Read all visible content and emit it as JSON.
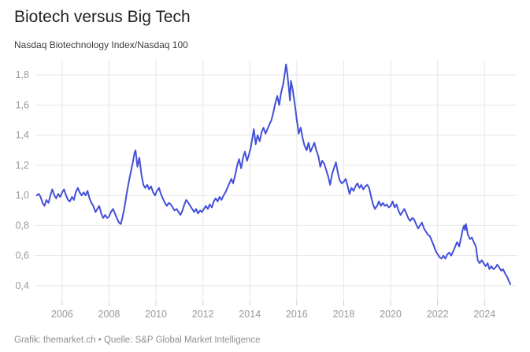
{
  "header": {
    "title": "Biotech versus Big Tech",
    "subtitle": "Nasdaq Biotechnology Index/Nasdaq 100"
  },
  "footer": {
    "credit": "Grafik: themarket.ch • Quelle: S&P Global Market Intelligence"
  },
  "colors": {
    "line": "#4350d8",
    "grid": "#e6e6e6",
    "tick": "#cccccc",
    "axis_label": "#999999",
    "title": "#222222",
    "subtitle": "#3d3d3d",
    "credit": "#8f8f8f",
    "background": "#ffffff"
  },
  "chart_data": {
    "type": "line",
    "title": "Biotech versus Big Tech",
    "subtitle": "Nasdaq Biotechnology Index/Nasdaq 100",
    "xlabel": "",
    "ylabel": "",
    "grid": true,
    "legend": false,
    "decimal_separator": ",",
    "xlim": [
      2004.83,
      2025.4
    ],
    "ylim": [
      0.3,
      1.9
    ],
    "x_ticks": [
      2006,
      2008,
      2010,
      2012,
      2014,
      2016,
      2018,
      2020,
      2022,
      2024
    ],
    "y_ticks": [
      0.4,
      0.6,
      0.8,
      1.0,
      1.2,
      1.4,
      1.6,
      1.8
    ],
    "series": [
      {
        "name": "Nasdaq Biotechnology Index / Nasdaq 100",
        "points": [
          [
            2004.92,
            1.0
          ],
          [
            2005.0,
            1.01
          ],
          [
            2005.08,
            0.99
          ],
          [
            2005.17,
            0.95
          ],
          [
            2005.25,
            0.93
          ],
          [
            2005.33,
            0.97
          ],
          [
            2005.42,
            0.95
          ],
          [
            2005.5,
            1.0
          ],
          [
            2005.58,
            1.04
          ],
          [
            2005.67,
            1.0
          ],
          [
            2005.75,
            0.98
          ],
          [
            2005.83,
            1.01
          ],
          [
            2005.92,
            0.99
          ],
          [
            2006.0,
            1.02
          ],
          [
            2006.08,
            1.04
          ],
          [
            2006.17,
            1.0
          ],
          [
            2006.25,
            0.97
          ],
          [
            2006.33,
            0.96
          ],
          [
            2006.42,
            0.99
          ],
          [
            2006.5,
            0.97
          ],
          [
            2006.58,
            1.02
          ],
          [
            2006.67,
            1.05
          ],
          [
            2006.75,
            1.02
          ],
          [
            2006.83,
            1.0
          ],
          [
            2006.92,
            1.02
          ],
          [
            2007.0,
            1.0
          ],
          [
            2007.08,
            1.03
          ],
          [
            2007.17,
            0.98
          ],
          [
            2007.25,
            0.95
          ],
          [
            2007.33,
            0.93
          ],
          [
            2007.42,
            0.89
          ],
          [
            2007.5,
            0.91
          ],
          [
            2007.58,
            0.93
          ],
          [
            2007.67,
            0.88
          ],
          [
            2007.75,
            0.85
          ],
          [
            2007.83,
            0.87
          ],
          [
            2007.92,
            0.85
          ],
          [
            2008.0,
            0.86
          ],
          [
            2008.08,
            0.89
          ],
          [
            2008.17,
            0.91
          ],
          [
            2008.25,
            0.88
          ],
          [
            2008.33,
            0.85
          ],
          [
            2008.42,
            0.82
          ],
          [
            2008.5,
            0.81
          ],
          [
            2008.58,
            0.86
          ],
          [
            2008.67,
            0.93
          ],
          [
            2008.75,
            1.01
          ],
          [
            2008.83,
            1.08
          ],
          [
            2008.92,
            1.15
          ],
          [
            2009.0,
            1.21
          ],
          [
            2009.08,
            1.28
          ],
          [
            2009.13,
            1.3
          ],
          [
            2009.21,
            1.19
          ],
          [
            2009.29,
            1.25
          ],
          [
            2009.38,
            1.14
          ],
          [
            2009.46,
            1.07
          ],
          [
            2009.54,
            1.05
          ],
          [
            2009.63,
            1.07
          ],
          [
            2009.71,
            1.04
          ],
          [
            2009.79,
            1.06
          ],
          [
            2009.88,
            1.02
          ],
          [
            2009.96,
            1.0
          ],
          [
            2010.04,
            1.03
          ],
          [
            2010.13,
            1.05
          ],
          [
            2010.21,
            1.01
          ],
          [
            2010.29,
            0.98
          ],
          [
            2010.38,
            0.95
          ],
          [
            2010.46,
            0.93
          ],
          [
            2010.54,
            0.95
          ],
          [
            2010.63,
            0.94
          ],
          [
            2010.71,
            0.92
          ],
          [
            2010.79,
            0.9
          ],
          [
            2010.88,
            0.91
          ],
          [
            2010.96,
            0.89
          ],
          [
            2011.04,
            0.87
          ],
          [
            2011.13,
            0.9
          ],
          [
            2011.21,
            0.94
          ],
          [
            2011.29,
            0.97
          ],
          [
            2011.38,
            0.95
          ],
          [
            2011.46,
            0.93
          ],
          [
            2011.54,
            0.91
          ],
          [
            2011.63,
            0.89
          ],
          [
            2011.71,
            0.91
          ],
          [
            2011.79,
            0.88
          ],
          [
            2011.88,
            0.9
          ],
          [
            2011.96,
            0.89
          ],
          [
            2012.04,
            0.91
          ],
          [
            2012.13,
            0.93
          ],
          [
            2012.21,
            0.91
          ],
          [
            2012.29,
            0.94
          ],
          [
            2012.38,
            0.92
          ],
          [
            2012.46,
            0.96
          ],
          [
            2012.54,
            0.98
          ],
          [
            2012.63,
            0.96
          ],
          [
            2012.71,
            0.99
          ],
          [
            2012.79,
            0.97
          ],
          [
            2012.88,
            1.0
          ],
          [
            2012.96,
            1.02
          ],
          [
            2013.04,
            1.05
          ],
          [
            2013.13,
            1.08
          ],
          [
            2013.21,
            1.11
          ],
          [
            2013.29,
            1.08
          ],
          [
            2013.38,
            1.14
          ],
          [
            2013.46,
            1.2
          ],
          [
            2013.54,
            1.24
          ],
          [
            2013.63,
            1.18
          ],
          [
            2013.71,
            1.25
          ],
          [
            2013.79,
            1.29
          ],
          [
            2013.88,
            1.23
          ],
          [
            2013.96,
            1.27
          ],
          [
            2014.04,
            1.32
          ],
          [
            2014.13,
            1.4
          ],
          [
            2014.17,
            1.44
          ],
          [
            2014.25,
            1.34
          ],
          [
            2014.33,
            1.4
          ],
          [
            2014.42,
            1.36
          ],
          [
            2014.5,
            1.42
          ],
          [
            2014.58,
            1.45
          ],
          [
            2014.67,
            1.41
          ],
          [
            2014.75,
            1.44
          ],
          [
            2014.83,
            1.47
          ],
          [
            2014.92,
            1.5
          ],
          [
            2015.0,
            1.55
          ],
          [
            2015.08,
            1.61
          ],
          [
            2015.17,
            1.66
          ],
          [
            2015.25,
            1.6
          ],
          [
            2015.33,
            1.68
          ],
          [
            2015.42,
            1.74
          ],
          [
            2015.5,
            1.82
          ],
          [
            2015.54,
            1.87
          ],
          [
            2015.58,
            1.83
          ],
          [
            2015.63,
            1.76
          ],
          [
            2015.67,
            1.7
          ],
          [
            2015.71,
            1.63
          ],
          [
            2015.75,
            1.76
          ],
          [
            2015.83,
            1.7
          ],
          [
            2015.92,
            1.6
          ],
          [
            2016.0,
            1.5
          ],
          [
            2016.08,
            1.41
          ],
          [
            2016.17,
            1.45
          ],
          [
            2016.25,
            1.38
          ],
          [
            2016.33,
            1.33
          ],
          [
            2016.42,
            1.3
          ],
          [
            2016.5,
            1.35
          ],
          [
            2016.58,
            1.29
          ],
          [
            2016.67,
            1.32
          ],
          [
            2016.75,
            1.35
          ],
          [
            2016.83,
            1.3
          ],
          [
            2016.92,
            1.26
          ],
          [
            2017.0,
            1.19
          ],
          [
            2017.08,
            1.23
          ],
          [
            2017.17,
            1.21
          ],
          [
            2017.25,
            1.17
          ],
          [
            2017.33,
            1.13
          ],
          [
            2017.42,
            1.07
          ],
          [
            2017.5,
            1.14
          ],
          [
            2017.58,
            1.18
          ],
          [
            2017.67,
            1.22
          ],
          [
            2017.75,
            1.15
          ],
          [
            2017.83,
            1.1
          ],
          [
            2017.92,
            1.08
          ],
          [
            2018.0,
            1.09
          ],
          [
            2018.08,
            1.11
          ],
          [
            2018.17,
            1.06
          ],
          [
            2018.25,
            1.01
          ],
          [
            2018.33,
            1.05
          ],
          [
            2018.42,
            1.03
          ],
          [
            2018.5,
            1.06
          ],
          [
            2018.58,
            1.08
          ],
          [
            2018.67,
            1.05
          ],
          [
            2018.75,
            1.07
          ],
          [
            2018.83,
            1.04
          ],
          [
            2018.92,
            1.06
          ],
          [
            2019.0,
            1.07
          ],
          [
            2019.08,
            1.05
          ],
          [
            2019.17,
            0.99
          ],
          [
            2019.25,
            0.94
          ],
          [
            2019.33,
            0.91
          ],
          [
            2019.42,
            0.93
          ],
          [
            2019.5,
            0.96
          ],
          [
            2019.58,
            0.93
          ],
          [
            2019.67,
            0.95
          ],
          [
            2019.75,
            0.93
          ],
          [
            2019.83,
            0.94
          ],
          [
            2019.92,
            0.92
          ],
          [
            2020.0,
            0.93
          ],
          [
            2020.08,
            0.96
          ],
          [
            2020.17,
            0.92
          ],
          [
            2020.25,
            0.94
          ],
          [
            2020.33,
            0.9
          ],
          [
            2020.42,
            0.87
          ],
          [
            2020.5,
            0.89
          ],
          [
            2020.58,
            0.91
          ],
          [
            2020.67,
            0.88
          ],
          [
            2020.75,
            0.85
          ],
          [
            2020.83,
            0.83
          ],
          [
            2020.92,
            0.85
          ],
          [
            2021.0,
            0.84
          ],
          [
            2021.08,
            0.81
          ],
          [
            2021.17,
            0.78
          ],
          [
            2021.25,
            0.8
          ],
          [
            2021.33,
            0.82
          ],
          [
            2021.42,
            0.78
          ],
          [
            2021.5,
            0.76
          ],
          [
            2021.58,
            0.74
          ],
          [
            2021.67,
            0.73
          ],
          [
            2021.75,
            0.7
          ],
          [
            2021.83,
            0.67
          ],
          [
            2021.92,
            0.63
          ],
          [
            2022.0,
            0.61
          ],
          [
            2022.08,
            0.59
          ],
          [
            2022.17,
            0.58
          ],
          [
            2022.25,
            0.6
          ],
          [
            2022.33,
            0.58
          ],
          [
            2022.42,
            0.61
          ],
          [
            2022.5,
            0.62
          ],
          [
            2022.58,
            0.6
          ],
          [
            2022.67,
            0.63
          ],
          [
            2022.75,
            0.66
          ],
          [
            2022.83,
            0.69
          ],
          [
            2022.92,
            0.66
          ],
          [
            2023.0,
            0.72
          ],
          [
            2023.08,
            0.78
          ],
          [
            2023.13,
            0.8
          ],
          [
            2023.17,
            0.77
          ],
          [
            2023.21,
            0.81
          ],
          [
            2023.29,
            0.74
          ],
          [
            2023.38,
            0.71
          ],
          [
            2023.46,
            0.72
          ],
          [
            2023.54,
            0.69
          ],
          [
            2023.63,
            0.66
          ],
          [
            2023.71,
            0.57
          ],
          [
            2023.79,
            0.55
          ],
          [
            2023.88,
            0.57
          ],
          [
            2023.96,
            0.55
          ],
          [
            2024.04,
            0.53
          ],
          [
            2024.13,
            0.55
          ],
          [
            2024.21,
            0.51
          ],
          [
            2024.29,
            0.53
          ],
          [
            2024.38,
            0.51
          ],
          [
            2024.46,
            0.52
          ],
          [
            2024.54,
            0.54
          ],
          [
            2024.63,
            0.52
          ],
          [
            2024.71,
            0.5
          ],
          [
            2024.79,
            0.51
          ],
          [
            2024.88,
            0.48
          ],
          [
            2024.96,
            0.46
          ],
          [
            2025.04,
            0.43
          ],
          [
            2025.1,
            0.41
          ]
        ]
      }
    ]
  }
}
